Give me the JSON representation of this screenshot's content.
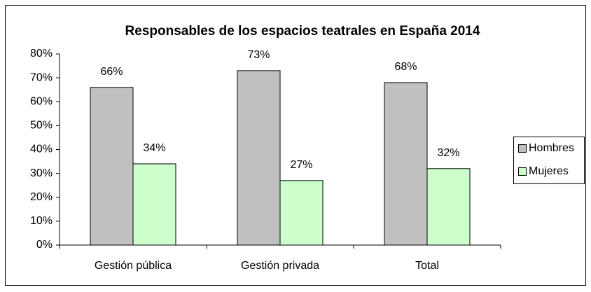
{
  "chart_data": {
    "type": "bar",
    "title": "Responsables de los espacios teatrales en España 2014",
    "categories": [
      "Gestión pública",
      "Gestión privada",
      "Total"
    ],
    "series": [
      {
        "name": "Hombres",
        "color": "#c0c0c0",
        "values": [
          66,
          73,
          68
        ],
        "value_labels": [
          "66%",
          "73%",
          "68%"
        ]
      },
      {
        "name": "Mujeres",
        "color": "#ccffcc",
        "values": [
          34,
          27,
          32
        ],
        "value_labels": [
          "34%",
          "27%",
          "32%"
        ]
      }
    ],
    "ylim": [
      0,
      80
    ],
    "yticks": [
      {
        "value": 0,
        "label": "0%"
      },
      {
        "value": 10,
        "label": "10%"
      },
      {
        "value": 20,
        "label": "20%"
      },
      {
        "value": 30,
        "label": "30%"
      },
      {
        "value": 40,
        "label": "40%"
      },
      {
        "value": 50,
        "label": "50%"
      },
      {
        "value": 60,
        "label": "60%"
      },
      {
        "value": 70,
        "label": "70%"
      },
      {
        "value": 80,
        "label": "80%"
      }
    ],
    "legend": "right"
  }
}
